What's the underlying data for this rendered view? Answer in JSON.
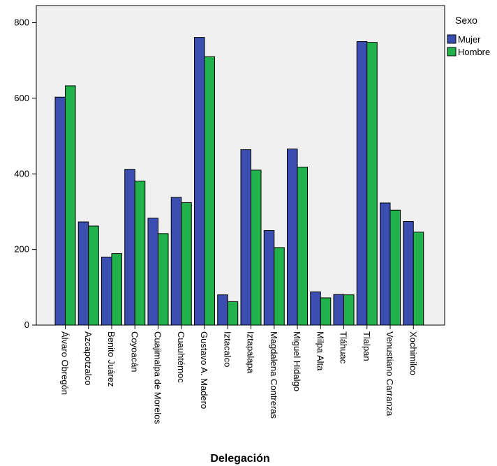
{
  "chart_data": {
    "type": "bar",
    "xlabel": "Delegación",
    "ylabel": "",
    "ylim": [
      0,
      820
    ],
    "yticks": [
      0,
      200,
      400,
      600,
      800
    ],
    "grid": false,
    "legend": {
      "title": "Sexo",
      "placement": "right"
    },
    "categories": [
      "Álvaro Obregón",
      "Azcapotzalco",
      "Benito Juárez",
      "Coyoacán",
      "Cuajimalpa de Morelos",
      "Cuauhtémoc",
      "Gustavo A. Madero",
      "Iztacalco",
      "Iztapalapa",
      "Magdalena Contreras",
      "Miguel Hidalgo",
      "Milpa Alta",
      "Tláhuac",
      "Tlalpan",
      "Venustiano Carranza",
      "Xochimilco"
    ],
    "series": [
      {
        "name": "Mujer",
        "color": "#3a4fb0",
        "values": [
          603,
          273,
          180,
          412,
          283,
          338,
          761,
          80,
          464,
          250,
          466,
          88,
          81,
          750,
          323,
          274
        ]
      },
      {
        "name": "Hombre",
        "color": "#22b24c",
        "values": [
          633,
          262,
          189,
          381,
          242,
          324,
          710,
          62,
          410,
          205,
          418,
          72,
          80,
          748,
          304,
          246
        ]
      }
    ]
  }
}
